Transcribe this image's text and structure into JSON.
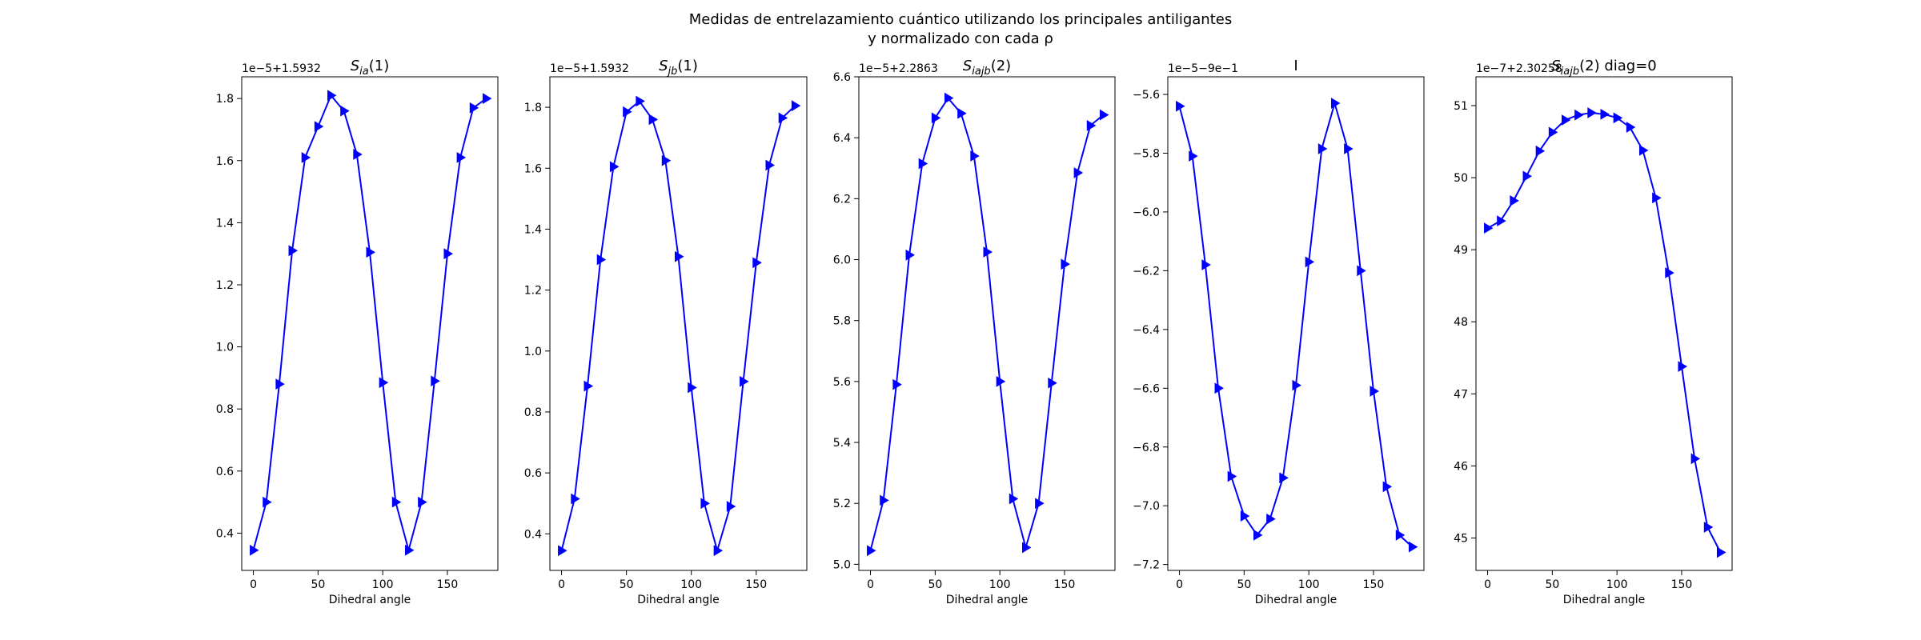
{
  "figure": {
    "title_line1": "Medidas de entrelazamiento cuántico utilizando los principales antiligantes",
    "title_line2": "y normalizado con cada ρ"
  },
  "chart_data": [
    {
      "type": "line",
      "title_base": "S",
      "title_sub": "ia",
      "title_tail": "(1)",
      "xlabel": "Dihedral angle",
      "ylabel": "",
      "offset_text": "1e−5+1.5932",
      "x": [
        0,
        10,
        20,
        30,
        40,
        50,
        60,
        70,
        80,
        90,
        100,
        110,
        120,
        130,
        140,
        150,
        160,
        170,
        180
      ],
      "y": [
        0.345,
        0.5,
        0.88,
        1.31,
        1.61,
        1.71,
        1.81,
        1.76,
        1.62,
        1.305,
        0.885,
        0.5,
        0.345,
        0.5,
        0.89,
        1.3,
        1.61,
        1.77,
        1.8
      ],
      "xlim": [
        -9,
        189
      ],
      "ylim": [
        0.28,
        1.87
      ],
      "xticks": [
        0,
        50,
        100,
        150
      ],
      "yticks": [
        0.4,
        0.6,
        0.8,
        1.0,
        1.2,
        1.4,
        1.6,
        1.8
      ],
      "ytick_labels": [
        "0.4",
        "0.6",
        "0.8",
        "1.0",
        "1.2",
        "1.4",
        "1.6",
        "1.8"
      ],
      "color": "#0000ff",
      "marker": "triangle-right",
      "grid": false
    },
    {
      "type": "line",
      "title_base": "S",
      "title_sub": "jb",
      "title_tail": "(1)",
      "xlabel": "Dihedral angle",
      "ylabel": "",
      "offset_text": "1e−5+1.5932",
      "x": [
        0,
        10,
        20,
        30,
        40,
        50,
        60,
        70,
        80,
        90,
        100,
        110,
        120,
        130,
        140,
        150,
        160,
        170,
        180
      ],
      "y": [
        0.345,
        0.515,
        0.885,
        1.3,
        1.605,
        1.785,
        1.82,
        1.76,
        1.625,
        1.31,
        0.88,
        0.5,
        0.345,
        0.49,
        0.9,
        1.29,
        1.61,
        1.765,
        1.805
      ],
      "xlim": [
        -9,
        189
      ],
      "ylim": [
        0.28,
        1.9
      ],
      "xticks": [
        0,
        50,
        100,
        150
      ],
      "yticks": [
        0.4,
        0.6,
        0.8,
        1.0,
        1.2,
        1.4,
        1.6,
        1.8
      ],
      "ytick_labels": [
        "0.4",
        "0.6",
        "0.8",
        "1.0",
        "1.2",
        "1.4",
        "1.6",
        "1.8"
      ],
      "color": "#0000ff",
      "marker": "triangle-right",
      "grid": false
    },
    {
      "type": "line",
      "title_base": "S",
      "title_sub": "iajb",
      "title_tail": "(2)",
      "xlabel": "Dihedral angle",
      "ylabel": "",
      "offset_text": "1e−5+2.2863",
      "x": [
        0,
        10,
        20,
        30,
        40,
        50,
        60,
        70,
        80,
        90,
        100,
        110,
        120,
        130,
        140,
        150,
        160,
        170,
        180
      ],
      "y": [
        5.045,
        5.21,
        5.59,
        6.015,
        6.315,
        6.465,
        6.53,
        6.48,
        6.34,
        6.025,
        5.6,
        5.215,
        5.055,
        5.2,
        5.595,
        5.985,
        6.285,
        6.44,
        6.475
      ],
      "xlim": [
        -9,
        189
      ],
      "ylim": [
        4.98,
        6.6
      ],
      "xticks": [
        0,
        50,
        100,
        150
      ],
      "yticks": [
        5.0,
        5.2,
        5.4,
        5.6,
        5.8,
        6.0,
        6.2,
        6.4,
        6.6
      ],
      "ytick_labels": [
        "5.0",
        "5.2",
        "5.4",
        "5.6",
        "5.8",
        "6.0",
        "6.2",
        "6.4",
        "6.6"
      ],
      "color": "#0000ff",
      "marker": "triangle-right",
      "grid": false
    },
    {
      "type": "line",
      "title_base": "I",
      "title_sub": "",
      "title_tail": "",
      "xlabel": "Dihedral angle",
      "ylabel": "",
      "offset_text": "1e−5−9e−1",
      "x": [
        0,
        10,
        20,
        30,
        40,
        50,
        60,
        70,
        80,
        90,
        100,
        110,
        120,
        130,
        140,
        150,
        160,
        170,
        180
      ],
      "y": [
        -5.64,
        -5.81,
        -6.18,
        -6.6,
        -6.9,
        -7.035,
        -7.1,
        -7.045,
        -6.905,
        -6.59,
        -6.17,
        -5.785,
        -5.63,
        -5.785,
        -6.2,
        -6.61,
        -6.935,
        -7.1,
        -7.14
      ],
      "xlim": [
        -9,
        189
      ],
      "ylim": [
        -7.22,
        -5.54
      ],
      "xticks": [
        0,
        50,
        100,
        150
      ],
      "yticks": [
        -7.2,
        -7.0,
        -6.8,
        -6.6,
        -6.4,
        -6.2,
        -6.0,
        -5.8,
        -5.6
      ],
      "ytick_labels": [
        "−7.2",
        "−7.0",
        "−6.8",
        "−6.6",
        "−6.4",
        "−6.2",
        "−6.0",
        "−5.8",
        "−5.6"
      ],
      "color": "#0000ff",
      "marker": "triangle-right",
      "grid": false
    },
    {
      "type": "line",
      "title_base": "S",
      "title_sub": "iajb",
      "title_tail": "(2) diag=0",
      "xlabel": "Dihedral angle",
      "ylabel": "",
      "offset_text": "1e−7+2.30258",
      "x": [
        0,
        10,
        20,
        30,
        40,
        50,
        60,
        70,
        80,
        90,
        100,
        110,
        120,
        130,
        140,
        150,
        160,
        170,
        180
      ],
      "y": [
        49.3,
        49.4,
        49.68,
        50.02,
        50.37,
        50.63,
        50.8,
        50.87,
        50.9,
        50.88,
        50.83,
        50.7,
        50.38,
        49.72,
        48.68,
        47.38,
        46.1,
        45.15,
        44.8
      ],
      "xlim": [
        -9,
        189
      ],
      "ylim": [
        44.55,
        51.4
      ],
      "xticks": [
        0,
        50,
        100,
        150
      ],
      "yticks": [
        45,
        46,
        47,
        48,
        49,
        50,
        51
      ],
      "ytick_labels": [
        "45",
        "46",
        "47",
        "48",
        "49",
        "50",
        "51"
      ],
      "color": "#0000ff",
      "marker": "triangle-right",
      "grid": false
    }
  ]
}
